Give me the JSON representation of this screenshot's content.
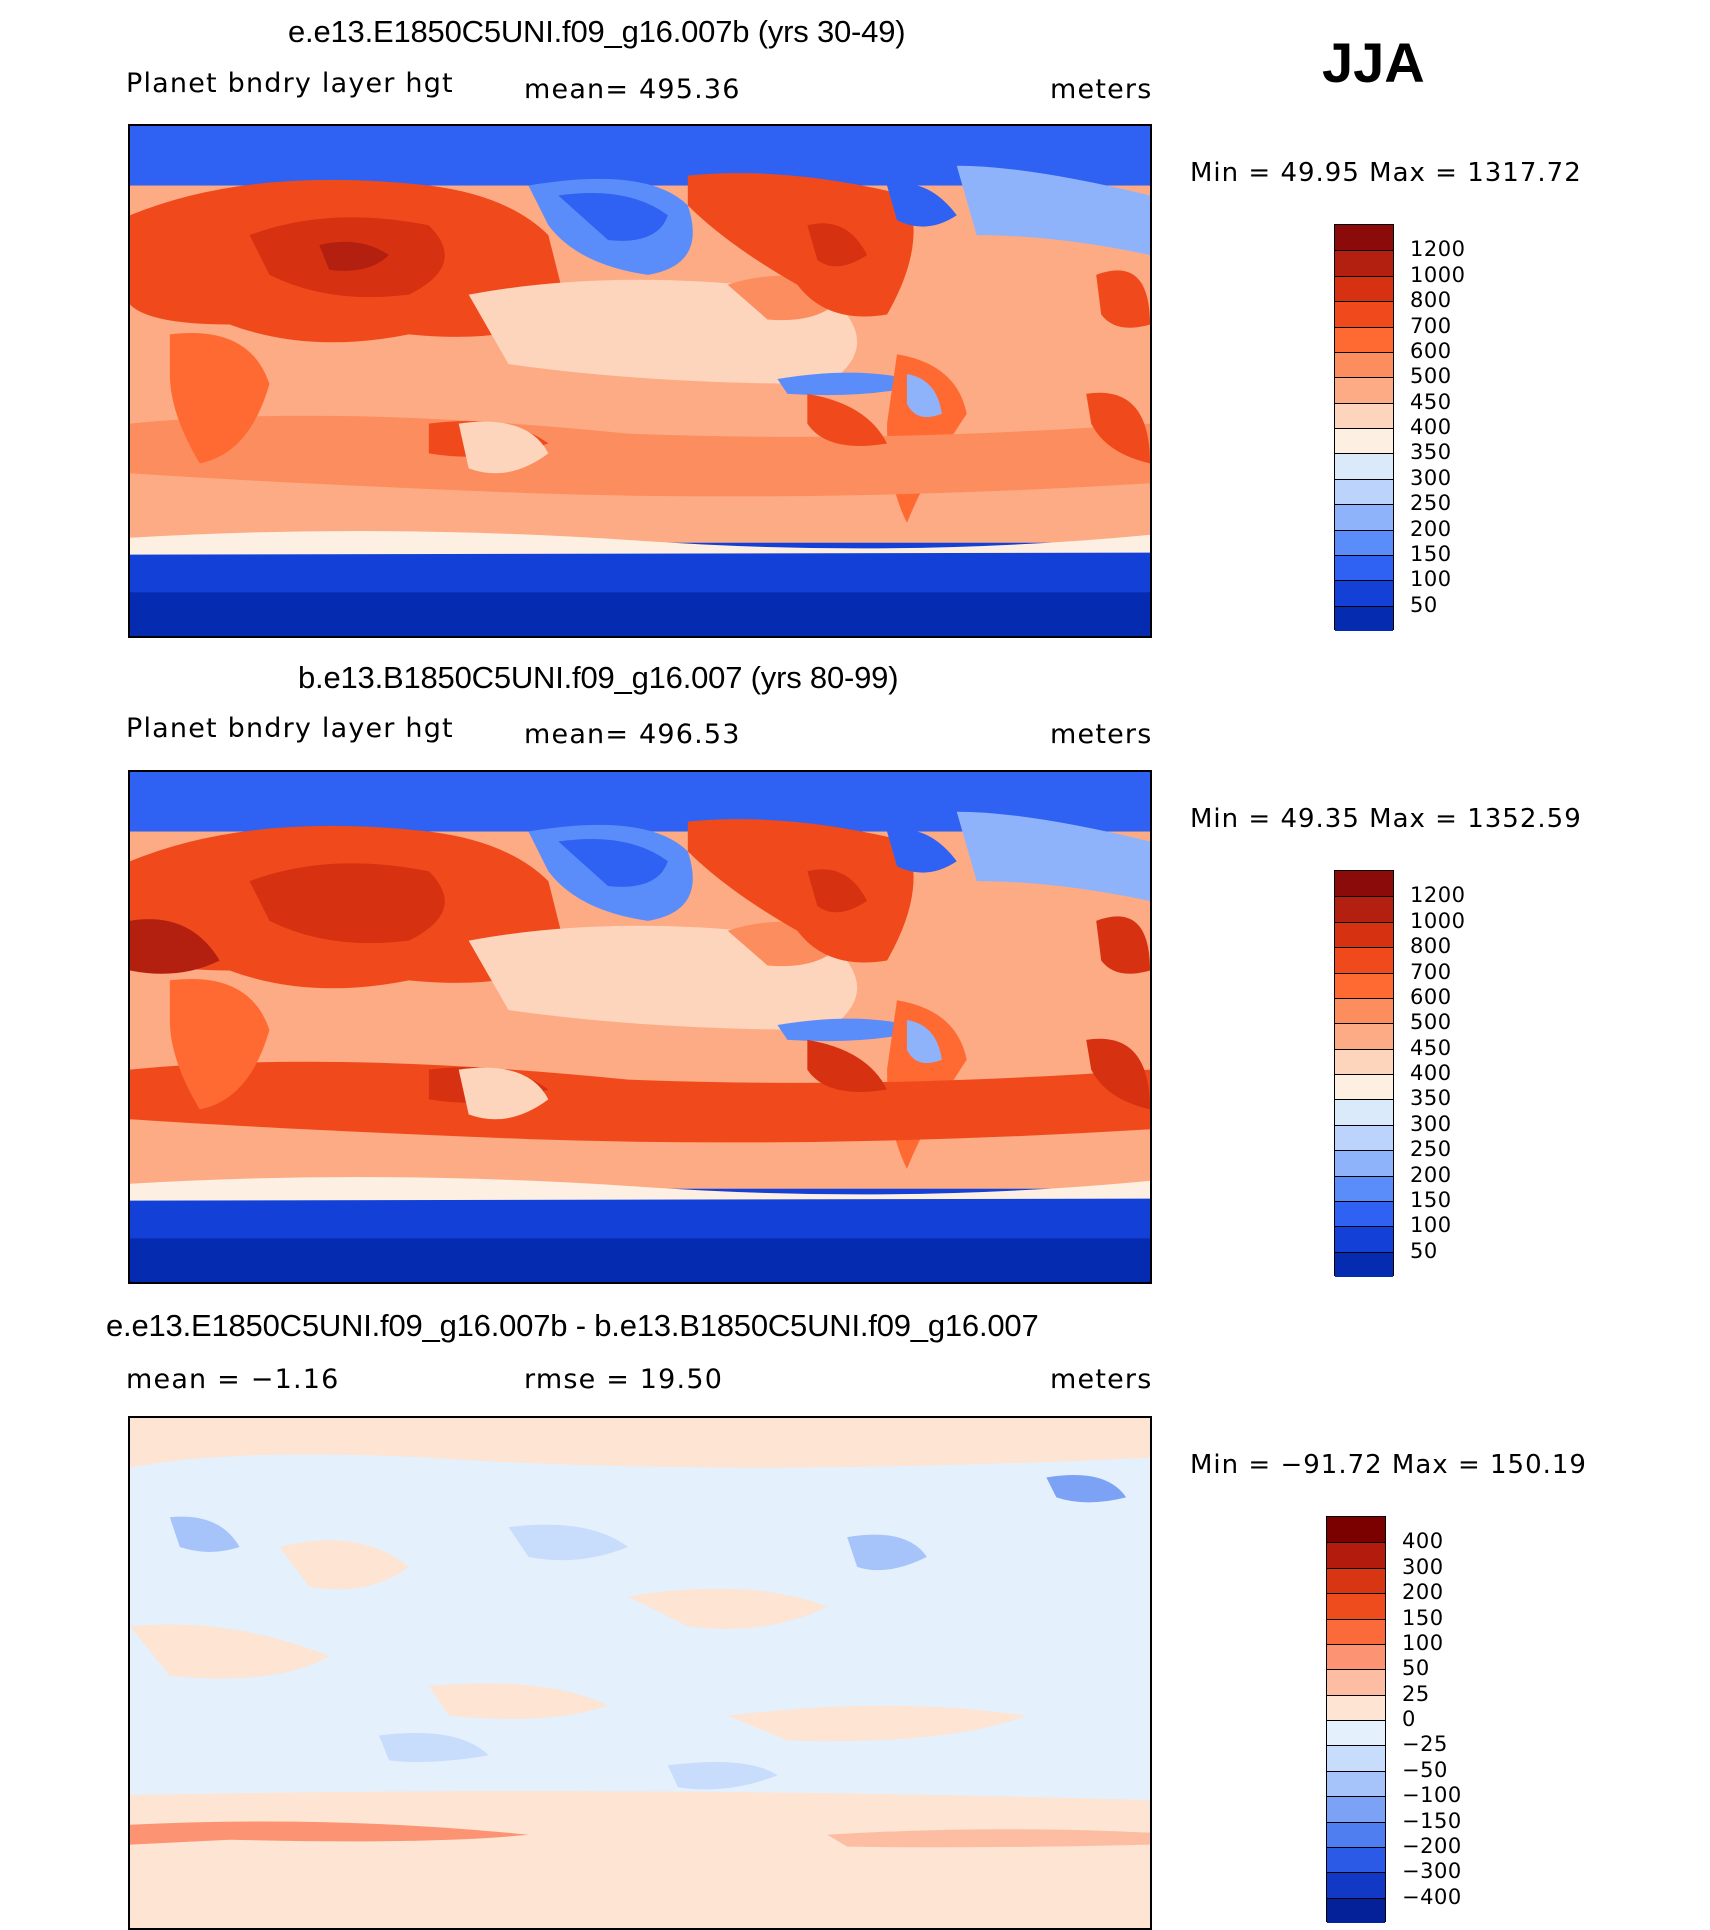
{
  "season": "JJA",
  "panels": [
    {
      "title": "e.e13.E1850C5UNI.f09_g16.007b (yrs 30-49)",
      "left_label": "Planet bndry layer hgt",
      "center_label": "mean=  495.36",
      "units": "meters",
      "minmax": "Min =    49.95  Max  =  1317.72",
      "cbar_labels": [
        "1200",
        "1000",
        "800",
        "700",
        "600",
        "500",
        "450",
        "400",
        "350",
        "300",
        "250",
        "200",
        "150",
        "100",
        "50"
      ]
    },
    {
      "title": "b.e13.B1850C5UNI.f09_g16.007 (yrs 80-99)",
      "left_label": "Planet bndry layer hgt",
      "center_label": "mean=  496.53",
      "units": "meters",
      "minmax": "Min =    49.35  Max  =  1352.59",
      "cbar_labels": [
        "1200",
        "1000",
        "800",
        "700",
        "600",
        "500",
        "450",
        "400",
        "350",
        "300",
        "250",
        "200",
        "150",
        "100",
        "50"
      ]
    },
    {
      "title": "e.e13.E1850C5UNI.f09_g16.007b - b.e13.B1850C5UNI.f09_g16.007",
      "left_label": "mean =   −1.16",
      "center_label": "rmse =    19.50",
      "units": "meters",
      "minmax": "Min  = −91.72  Max  =  150.19",
      "cbar_labels": [
        "400",
        "300",
        "200",
        "150",
        "100",
        "50",
        "25",
        "0",
        "−25",
        "−50",
        "−100",
        "−150",
        "−200",
        "−300",
        "−400"
      ]
    }
  ],
  "colors": {
    "abs_scale": [
      "#8b0a0a",
      "#b3200f",
      "#d63212",
      "#f04a1c",
      "#ff6a33",
      "#fc8d5e",
      "#fcab84",
      "#fdd4bc",
      "#fdefe1",
      "#dbeafb",
      "#bcd4fb",
      "#8fb3fb",
      "#5b8dfa",
      "#2f62f2",
      "#1341d8",
      "#052bb0",
      "#021a86"
    ],
    "diff_scale": [
      "#7b0000",
      "#b31b0c",
      "#d83513",
      "#ef4c1e",
      "#fb6a3b",
      "#fc9473",
      "#fdbda2",
      "#fde4d3",
      "#e5f0fd",
      "#c8dcfb",
      "#a6c4fa",
      "#7ba2f5",
      "#4f7ef0",
      "#2a5ae6",
      "#1239c6",
      "#05219a",
      "#001070"
    ]
  },
  "chart_data": [
    {
      "type": "heatmap",
      "title": "e.e13.E1850C5UNI.f09_g16.007b (yrs 30-49)",
      "variable": "Planet bndry layer hgt",
      "units": "meters",
      "mean": 495.36,
      "min": 49.95,
      "max": 1317.72,
      "contour_levels": [
        50,
        100,
        150,
        200,
        250,
        300,
        350,
        400,
        450,
        500,
        600,
        700,
        800,
        1000,
        1200
      ]
    },
    {
      "type": "heatmap",
      "title": "b.e13.B1850C5UNI.f09_g16.007 (yrs 80-99)",
      "variable": "Planet bndry layer hgt",
      "units": "meters",
      "mean": 496.53,
      "min": 49.35,
      "max": 1352.59,
      "contour_levels": [
        50,
        100,
        150,
        200,
        250,
        300,
        350,
        400,
        450,
        500,
        600,
        700,
        800,
        1000,
        1200
      ]
    },
    {
      "type": "heatmap",
      "title": "e.e13.E1850C5UNI.f09_g16.007b - b.e13.B1850C5UNI.f09_g16.007",
      "units": "meters",
      "mean": -1.16,
      "rmse": 19.5,
      "min": -91.72,
      "max": 150.19,
      "contour_levels": [
        -400,
        -300,
        -200,
        -150,
        -100,
        -50,
        -25,
        0,
        25,
        50,
        100,
        150,
        200,
        300,
        400
      ]
    }
  ]
}
